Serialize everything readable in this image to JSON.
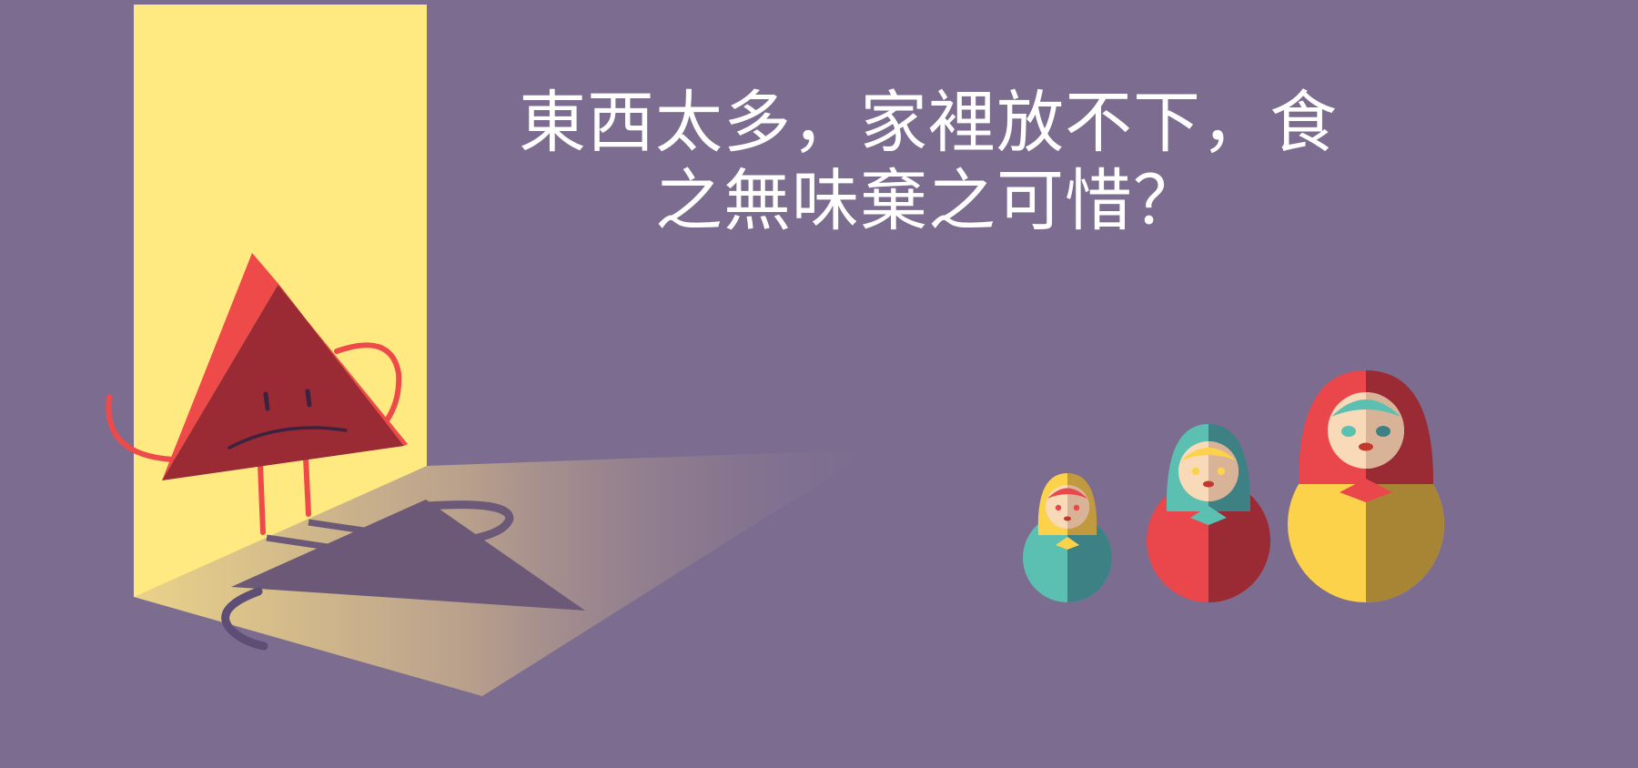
{
  "headline": {
    "line1": "東西太多，家裡放不下，食",
    "line2": "之無味棄之可惜？"
  },
  "colors": {
    "background": "#7c6c90",
    "doorway_light": "#ffe981",
    "triangle_light": "#ef4a4a",
    "triangle_dark": "#9a2a33",
    "doll_red": "#e9474c",
    "doll_yellow": "#fdd24b",
    "doll_teal": "#5bbfb1",
    "doll_face": "#f8d9b8"
  },
  "illustration": {
    "character": "sad-triangle",
    "dolls": [
      "small-doll",
      "medium-doll",
      "large-doll"
    ]
  }
}
